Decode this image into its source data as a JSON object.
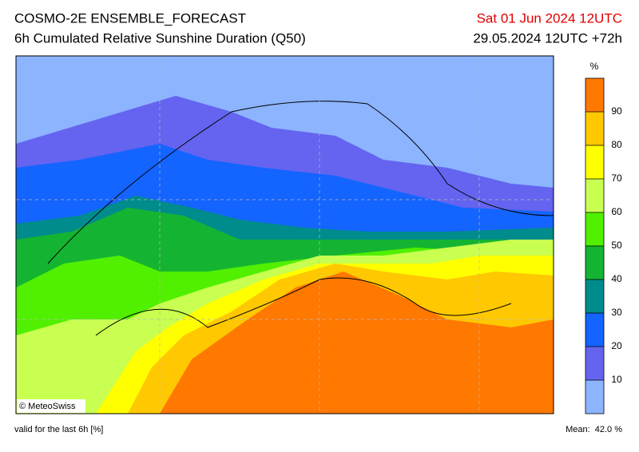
{
  "header": {
    "title": "COSMO-2E ENSEMBLE_FORECAST",
    "subtitle": "6h Cumulated Relative Sunshine Duration (Q50)",
    "valid_time": "Sat 01 Jun 2024 12UTC",
    "run": "29.05.2024 12UTC +72h"
  },
  "map": {
    "credit": "© MeteoSwiss"
  },
  "colorbar": {
    "unit": "%",
    "ticks": [
      10,
      20,
      30,
      40,
      50,
      60,
      70,
      80,
      90
    ],
    "limits": [
      0,
      100
    ],
    "colors": [
      "#8cb4ff",
      "#6464f0",
      "#1464ff",
      "#008c8c",
      "#14b432",
      "#50f000",
      "#c8ff50",
      "#ffff00",
      "#ffc800",
      "#ff7800"
    ]
  },
  "footer": {
    "validity": "valid for the last 6h [%]",
    "mean": "Mean:  42.0 %"
  }
}
